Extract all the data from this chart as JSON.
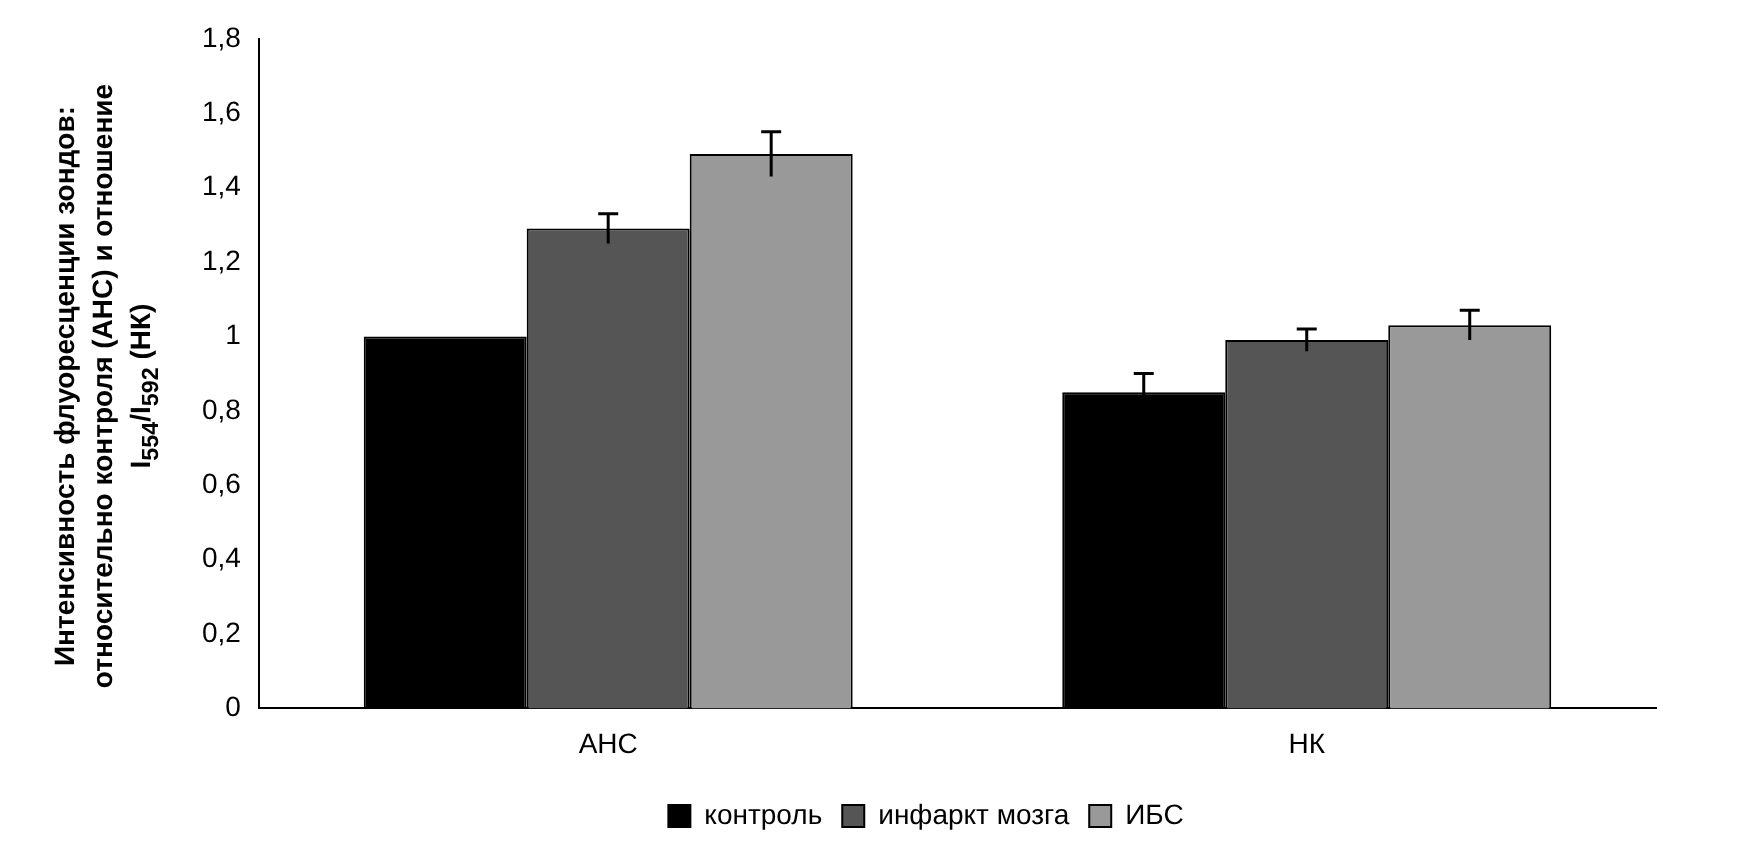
{
  "chart_data": {
    "type": "bar",
    "ylabel": "Интенсивность флуоресценции зондов: относительно контроля (АНС) и отношение I$_{554}$/I$_{592}$ (НК)",
    "categories": [
      "АНС",
      "НК"
    ],
    "series": [
      {
        "name": "контроль",
        "color": "#000000",
        "values": [
          1.0,
          0.85
        ],
        "errors": [
          null,
          0.05
        ]
      },
      {
        "name": "инфаркт мозга",
        "color": "#555555",
        "values": [
          1.29,
          0.99
        ],
        "errors": [
          0.04,
          0.03
        ]
      },
      {
        "name": "ИБС",
        "color": "#999999",
        "values": [
          1.49,
          1.03
        ],
        "errors": [
          0.06,
          0.04
        ]
      }
    ],
    "ylim": [
      0,
      1.8
    ],
    "yticks": [
      {
        "value": 0,
        "label": "0"
      },
      {
        "value": 0.2,
        "label": "0,2"
      },
      {
        "value": 0.4,
        "label": "0,4"
      },
      {
        "value": 0.6,
        "label": "0,6"
      },
      {
        "value": 0.8,
        "label": "0,8"
      },
      {
        "value": 1,
        "label": "1"
      },
      {
        "value": 1.2,
        "label": "1,2"
      },
      {
        "value": 1.4,
        "label": "1,4"
      },
      {
        "value": 1.6,
        "label": "1,6"
      },
      {
        "value": 1.8,
        "label": "1,8"
      }
    ],
    "grid": false,
    "legend": "bottom"
  }
}
